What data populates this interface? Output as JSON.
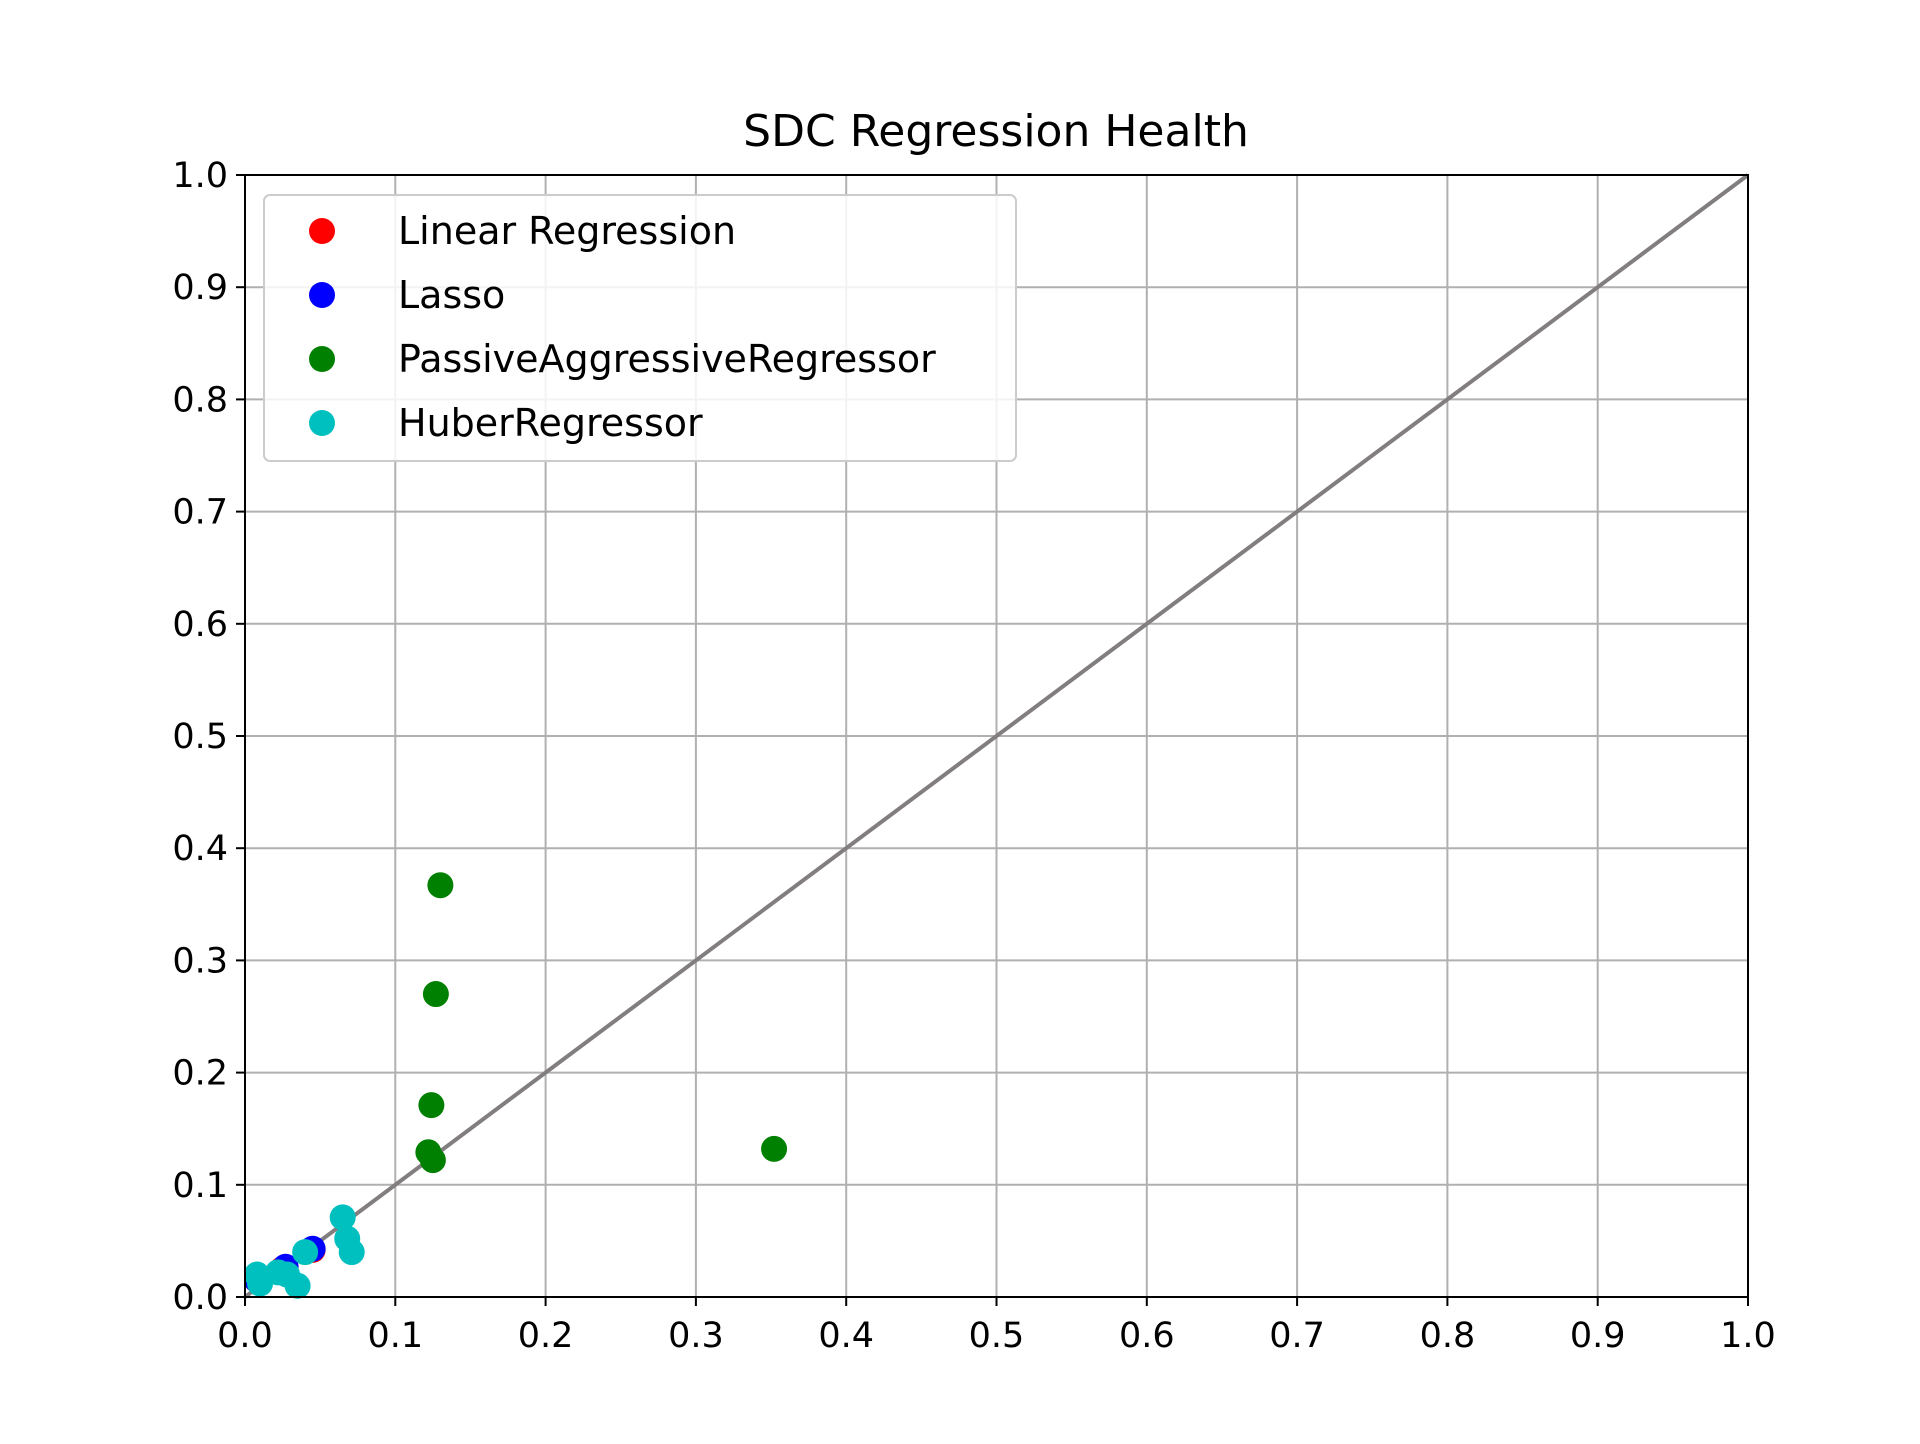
{
  "chart_data": {
    "type": "scatter",
    "title": "SDC Regression Health",
    "xlabel": "",
    "ylabel": "",
    "xlim": [
      0.0,
      1.0
    ],
    "ylim": [
      0.0,
      1.0
    ],
    "xticks": [
      "0.0",
      "0.1",
      "0.2",
      "0.3",
      "0.4",
      "0.5",
      "0.6",
      "0.7",
      "0.8",
      "0.9",
      "1.0"
    ],
    "yticks": [
      "0.0",
      "0.1",
      "0.2",
      "0.3",
      "0.4",
      "0.5",
      "0.6",
      "0.7",
      "0.8",
      "0.9",
      "1.0"
    ],
    "grid": true,
    "legend_position": "top-left",
    "reference_line": {
      "x": [
        0.0,
        1.0
      ],
      "y": [
        0.0,
        1.0
      ],
      "color": "#827e80"
    },
    "series": [
      {
        "name": "Linear Regression",
        "color": "#ff0000",
        "points": [
          [
            0.008,
            0.015
          ],
          [
            0.025,
            0.025
          ],
          [
            0.045,
            0.042
          ]
        ]
      },
      {
        "name": "Lasso",
        "color": "#0000ff",
        "points": [
          [
            0.008,
            0.015
          ],
          [
            0.027,
            0.027
          ],
          [
            0.045,
            0.043
          ]
        ]
      },
      {
        "name": "PassiveAggressiveRegressor",
        "color": "#008000",
        "points": [
          [
            0.13,
            0.367
          ],
          [
            0.127,
            0.27
          ],
          [
            0.124,
            0.171
          ],
          [
            0.122,
            0.129
          ],
          [
            0.125,
            0.122
          ],
          [
            0.352,
            0.132
          ]
        ]
      },
      {
        "name": "HuberRegressor",
        "color": "#00bfbf",
        "points": [
          [
            0.008,
            0.02
          ],
          [
            0.01,
            0.012
          ],
          [
            0.022,
            0.022
          ],
          [
            0.028,
            0.02
          ],
          [
            0.035,
            0.01
          ],
          [
            0.04,
            0.04
          ],
          [
            0.065,
            0.071
          ],
          [
            0.068,
            0.052
          ],
          [
            0.071,
            0.04
          ]
        ]
      }
    ]
  }
}
